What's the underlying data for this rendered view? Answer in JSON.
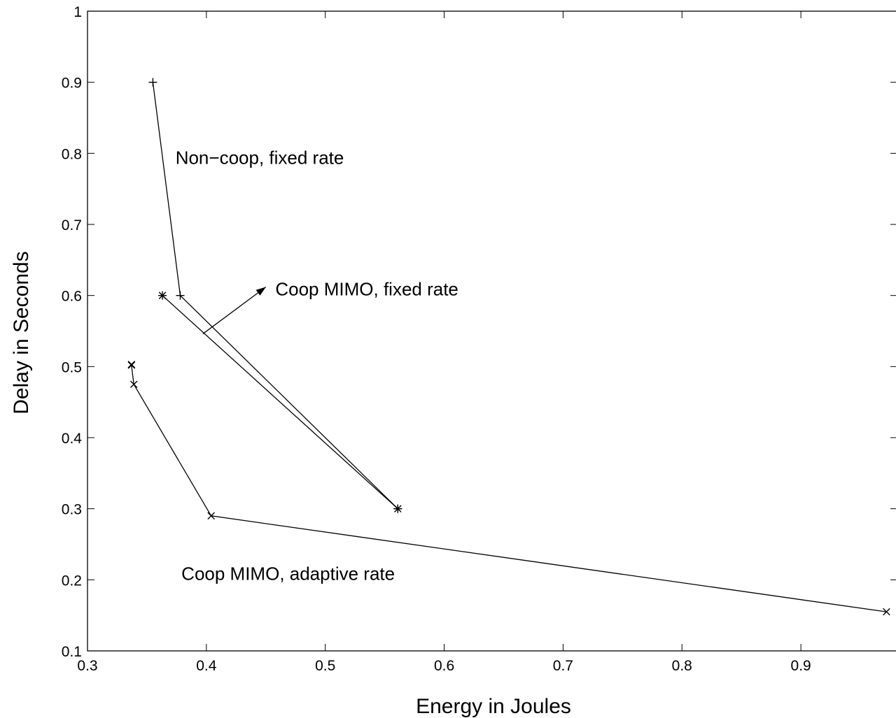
{
  "chart_data": {
    "type": "line",
    "xlabel": "Energy in Joules",
    "ylabel": "Delay in Seconds",
    "xlim": [
      0.3,
      0.98
    ],
    "ylim": [
      0.1,
      1.0
    ],
    "xticks": [
      0.3,
      0.4,
      0.5,
      0.6,
      0.7,
      0.8,
      0.9
    ],
    "xtick_labels": [
      "0.3",
      "0.4",
      "0.5",
      "0.6",
      "0.7",
      "0.8",
      "0.9"
    ],
    "yticks": [
      0.1,
      0.2,
      0.3,
      0.4,
      0.5,
      0.6,
      0.7,
      0.8,
      0.9,
      1.0
    ],
    "ytick_labels": [
      "0.1",
      "0.2",
      "0.3",
      "0.4",
      "0.5",
      "0.6",
      "0.7",
      "0.8",
      "0.9",
      "1"
    ],
    "grid": false,
    "series": [
      {
        "marker": "plus",
        "x": [
          0.355,
          0.378,
          0.561
        ],
        "y": [
          0.9,
          0.6,
          0.3
        ]
      },
      {
        "marker": "asterisk",
        "x": [
          0.363,
          0.561
        ],
        "y": [
          0.6,
          0.3
        ]
      },
      {
        "marker": "x",
        "x": [
          0.337,
          0.337,
          0.339,
          0.404,
          0.972
        ],
        "y": [
          0.503,
          0.502,
          0.475,
          0.29,
          0.155
        ]
      }
    ],
    "annotations": [
      {
        "text": "Non−coop, fixed rate",
        "x": 0.374,
        "y": 0.785
      },
      {
        "text": "Coop MIMO, fixed rate",
        "x": 0.458,
        "y": 0.6
      },
      {
        "text": "Coop MIMO, adaptive rate",
        "x": 0.379,
        "y": 0.2
      }
    ],
    "arrow": {
      "from": [
        0.397,
        0.546
      ],
      "to": [
        0.45,
        0.612
      ]
    }
  }
}
